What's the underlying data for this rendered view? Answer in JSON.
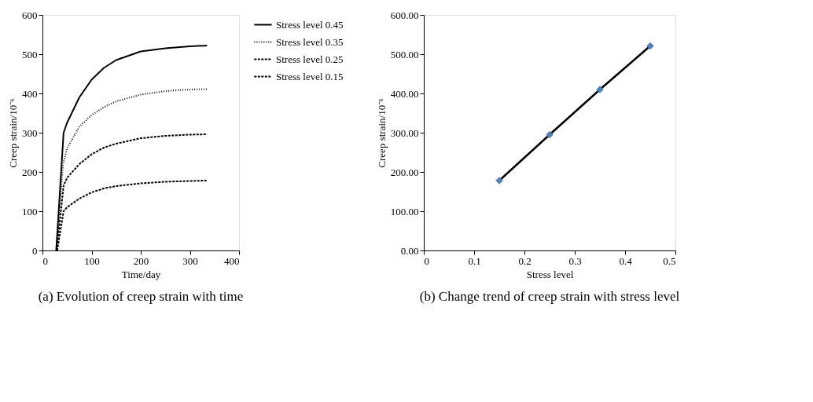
{
  "chart_data": [
    {
      "type": "line",
      "xlabel": "Time/day",
      "ylabel": "Creep strain/10⁻⁶",
      "xlim": [
        0,
        400
      ],
      "xticks": [
        0,
        100,
        200,
        300,
        400
      ],
      "ylim": [
        0,
        600
      ],
      "yticks": [
        0,
        100,
        200,
        300,
        400,
        500,
        600
      ],
      "grid": false,
      "legend": "right",
      "annotations": [
        "(a) Evolution of creep strain with time"
      ],
      "series": [
        {
          "name": "Stress level 0.45",
          "color": "#000000",
          "line_style": "solid",
          "x": [
            28,
            43,
            50,
            75,
            100,
            125,
            150,
            200,
            250,
            300,
            335
          ],
          "values": [
            0,
            300,
            325,
            390,
            435,
            465,
            485,
            507,
            515,
            520,
            522
          ]
        },
        {
          "name": "Stress level 0.35",
          "color": "#000000",
          "line_style": "dotted",
          "x": [
            28,
            42,
            50,
            75,
            100,
            125,
            150,
            200,
            250,
            300,
            335
          ],
          "values": [
            0,
            220,
            260,
            315,
            345,
            365,
            380,
            397,
            406,
            410,
            411
          ]
        },
        {
          "name": "Stress level 0.25",
          "color": "#000000",
          "line_style": "dashed",
          "x": [
            29,
            43,
            50,
            75,
            100,
            125,
            150,
            200,
            250,
            300,
            335
          ],
          "values": [
            0,
            165,
            185,
            220,
            245,
            262,
            272,
            286,
            292,
            295,
            296
          ]
        },
        {
          "name": "Stress level 0.15",
          "color": "#000000",
          "line_style": "dashed",
          "x": [
            30,
            43,
            50,
            75,
            100,
            125,
            150,
            200,
            250,
            300,
            335
          ],
          "values": [
            0,
            100,
            110,
            132,
            148,
            158,
            164,
            171,
            175,
            177,
            178
          ]
        }
      ]
    },
    {
      "type": "line",
      "xlabel": "Stress level",
      "ylabel": "Creep strain/10⁻⁶",
      "xlim": [
        0,
        0.5
      ],
      "xticks": [
        0,
        0.1,
        0.2,
        0.3,
        0.4,
        0.5
      ],
      "ylim": [
        0,
        600
      ],
      "yticks": [
        {
          "value": 0,
          "label": "0.00"
        },
        {
          "value": 100,
          "label": "100.00"
        },
        {
          "value": 200,
          "label": "200.00"
        },
        {
          "value": 300,
          "label": "300.00"
        },
        {
          "value": 400,
          "label": "400.00"
        },
        {
          "value": 500,
          "label": "500.00"
        },
        {
          "value": 600,
          "label": "600.00"
        }
      ],
      "grid": false,
      "annotations": [
        "(b) Change trend of creep strain with stress level"
      ],
      "series": [
        {
          "color": "#000000",
          "marker": "none",
          "line_style": "solid",
          "x": [
            0.15,
            0.25,
            0.35,
            0.45
          ],
          "values": [
            178,
            295,
            410,
            521
          ]
        },
        {
          "type": "scatter",
          "color": "#4f81bd",
          "marker": "diamond",
          "x": [
            0.15,
            0.25,
            0.35,
            0.45
          ],
          "values": [
            178,
            295,
            410,
            521
          ]
        }
      ]
    }
  ]
}
